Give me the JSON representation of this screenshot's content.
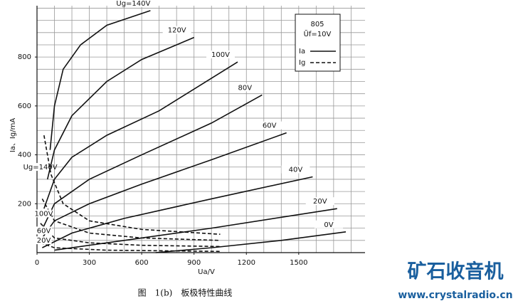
{
  "chart_data": {
    "type": "line",
    "y_label": "Ia、Ig/mA",
    "x_label": "Ua/V",
    "xlim": [
      0,
      1880
    ],
    "ylim": [
      0,
      1010
    ],
    "xticks": [
      0,
      300,
      600,
      900,
      1200,
      1500
    ],
    "yticks": [
      200,
      400,
      600,
      800
    ],
    "xgrid": [
      100,
      200,
      300,
      400,
      500,
      600,
      700,
      800,
      900,
      1000,
      1100,
      1200,
      1300,
      1400,
      1500,
      1600,
      1700,
      1800
    ],
    "ygrid": [
      50,
      100,
      150,
      200,
      250,
      300,
      350,
      400,
      450,
      500,
      550,
      600,
      650,
      700,
      750,
      800,
      850,
      900,
      950,
      1000
    ],
    "grid": true,
    "legend": {
      "title": "805",
      "subtitle": "Ũf=10V",
      "items": [
        {
          "name": "Ia",
          "dash": false
        },
        {
          "name": "Ig",
          "dash": true
        }
      ]
    },
    "series": [
      {
        "name": "Ug=140V",
        "color": "#111",
        "dash": false,
        "x": [
          75,
          100,
          150,
          250,
          400,
          650
        ],
        "values": [
          420,
          600,
          750,
          850,
          930,
          990
        ]
      },
      {
        "name": "120V",
        "color": "#111",
        "dash": false,
        "x": [
          60,
          100,
          200,
          400,
          600,
          900
        ],
        "values": [
          300,
          420,
          560,
          700,
          790,
          880
        ]
      },
      {
        "name": "100V",
        "color": "#111",
        "dash": false,
        "x": [
          40,
          100,
          200,
          400,
          700,
          1150
        ],
        "values": [
          180,
          300,
          390,
          480,
          580,
          780
        ]
      },
      {
        "name": "80V",
        "color": "#111",
        "dash": false,
        "x": [
          20,
          100,
          300,
          600,
          1000,
          1290
        ],
        "values": [
          80,
          200,
          300,
          400,
          530,
          645
        ]
      },
      {
        "name": "60V",
        "color": "#111",
        "dash": false,
        "x": [
          20,
          100,
          300,
          600,
          1000,
          1430
        ],
        "values": [
          50,
          130,
          200,
          280,
          380,
          490
        ]
      },
      {
        "name": "40V",
        "color": "#111",
        "dash": false,
        "x": [
          30,
          200,
          500,
          1000,
          1580
        ],
        "values": [
          20,
          80,
          140,
          220,
          310
        ]
      },
      {
        "name": "20V",
        "color": "#111",
        "dash": false,
        "x": [
          100,
          500,
          1000,
          1720
        ],
        "values": [
          10,
          50,
          100,
          180
        ]
      },
      {
        "name": "0V",
        "color": "#111",
        "dash": false,
        "x": [
          680,
          1000,
          1400,
          1770
        ],
        "values": [
          0,
          20,
          50,
          85
        ]
      },
      {
        "name": "Ug=140V",
        "color": "#111",
        "dash": true,
        "x": [
          40,
          80,
          150,
          300,
          600,
          1050
        ],
        "values": [
          480,
          320,
          200,
          130,
          95,
          75
        ]
      },
      {
        "name": "100V",
        "color": "#111",
        "dash": true,
        "x": [
          30,
          100,
          300,
          600,
          1050
        ],
        "values": [
          220,
          130,
          80,
          60,
          50
        ]
      },
      {
        "name": "60V",
        "color": "#111",
        "dash": true,
        "x": [
          20,
          100,
          300,
          600,
          1050
        ],
        "values": [
          120,
          60,
          40,
          30,
          25
        ]
      },
      {
        "name": "20V",
        "color": "#111",
        "dash": true,
        "x": [
          20,
          100,
          400,
          1050
        ],
        "values": [
          40,
          20,
          10,
          5
        ]
      }
    ]
  },
  "caption": "图　1(b)　板极特性曲线",
  "watermark": {
    "title": "矿石收音机",
    "url": "www.crystalradio.cn"
  }
}
